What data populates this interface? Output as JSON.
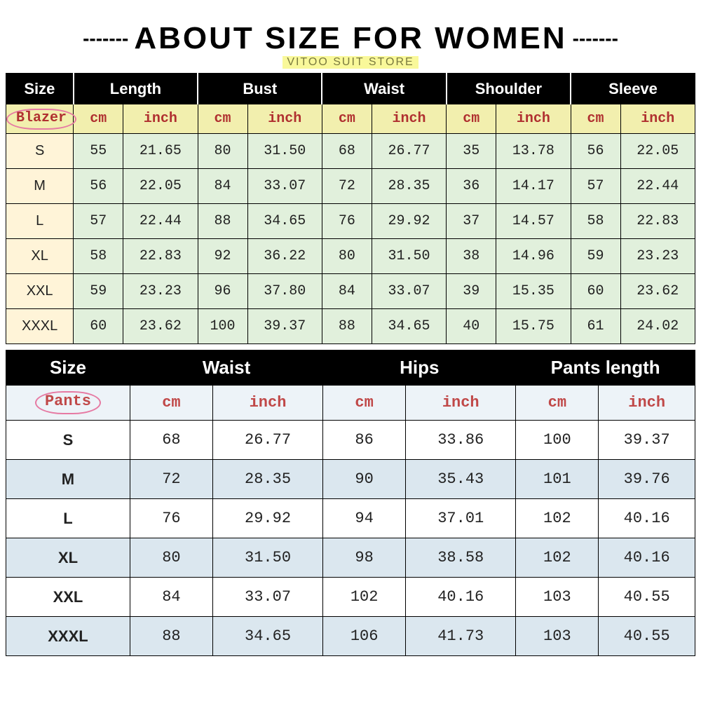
{
  "header": {
    "dash": "-------",
    "title": "ABOUT SIZE FOR WOMEN",
    "subtitle": "VITOO SUIT STORE"
  },
  "blazer": {
    "type": "table",
    "columns_cm_inch": [
      "cm",
      "inch",
      "cm",
      "inch",
      "cm",
      "inch",
      "cm",
      "inch",
      "cm",
      "inch"
    ],
    "headers": [
      "Size",
      "Length",
      "Bust",
      "Waist",
      "Shoulder",
      "Sleeve"
    ],
    "label": "Blazer",
    "col_widths_pct": [
      9.5,
      7,
      10.5,
      7,
      10.5,
      7,
      10.5,
      7,
      10.5,
      7,
      10.5
    ],
    "rows": [
      {
        "size": "S",
        "cells": [
          "55",
          "21.65",
          "80",
          "31.50",
          "68",
          "26.77",
          "35",
          "13.78",
          "56",
          "22.05"
        ]
      },
      {
        "size": "M",
        "cells": [
          "56",
          "22.05",
          "84",
          "33.07",
          "72",
          "28.35",
          "36",
          "14.17",
          "57",
          "22.44"
        ]
      },
      {
        "size": "L",
        "cells": [
          "57",
          "22.44",
          "88",
          "34.65",
          "76",
          "29.92",
          "37",
          "14.57",
          "58",
          "22.83"
        ]
      },
      {
        "size": "XL",
        "cells": [
          "58",
          "22.83",
          "92",
          "36.22",
          "80",
          "31.50",
          "38",
          "14.96",
          "59",
          "23.23"
        ]
      },
      {
        "size": "XXL",
        "cells": [
          "59",
          "23.23",
          "96",
          "37.80",
          "84",
          "33.07",
          "39",
          "15.35",
          "60",
          "23.62"
        ]
      },
      {
        "size": "XXXL",
        "cells": [
          "60",
          "23.62",
          "100",
          "39.37",
          "88",
          "34.65",
          "40",
          "15.75",
          "61",
          "24.02"
        ]
      }
    ]
  },
  "pants": {
    "type": "table",
    "headers": [
      "Size",
      "Waist",
      "Hips",
      "Pants length"
    ],
    "label": "Pants",
    "sub": [
      "cm",
      "inch",
      "cm",
      "inch",
      "cm",
      "inch"
    ],
    "col_widths_pct": [
      18,
      12,
      16,
      12,
      16,
      12,
      14
    ],
    "rows": [
      {
        "size": "S",
        "cells": [
          "68",
          "26.77",
          "86",
          "33.86",
          "100",
          "39.37"
        ]
      },
      {
        "size": "M",
        "cells": [
          "72",
          "28.35",
          "90",
          "35.43",
          "101",
          "39.76"
        ]
      },
      {
        "size": "L",
        "cells": [
          "76",
          "29.92",
          "94",
          "37.01",
          "102",
          "40.16"
        ]
      },
      {
        "size": "XL",
        "cells": [
          "80",
          "31.50",
          "98",
          "38.58",
          "102",
          "40.16"
        ]
      },
      {
        "size": "XXL",
        "cells": [
          "84",
          "33.07",
          "102",
          "40.16",
          "103",
          "40.55"
        ]
      },
      {
        "size": "XXXL",
        "cells": [
          "88",
          "34.65",
          "106",
          "41.73",
          "103",
          "40.55"
        ]
      }
    ]
  }
}
